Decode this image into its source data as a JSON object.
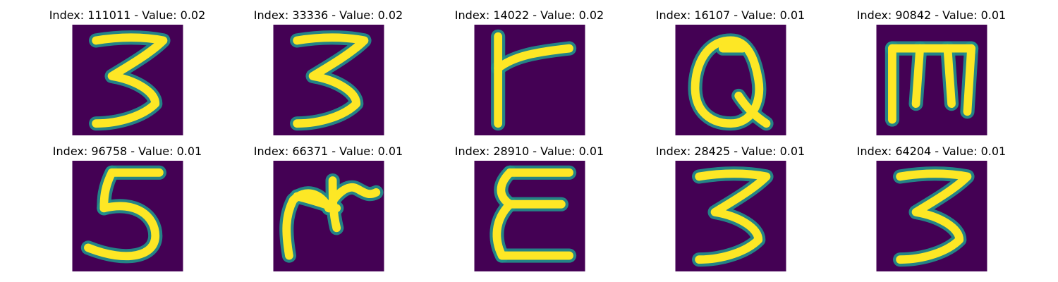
{
  "colors": {
    "background": "#440154",
    "edge": "#21918c",
    "stroke": "#fde725",
    "title": "#000000"
  },
  "panels": [
    {
      "title": "Index: 111011 - Value: 0.02",
      "glyph": "3"
    },
    {
      "title": "Index: 33336 - Value: 0.02",
      "glyph": "3"
    },
    {
      "title": "Index: 14022 - Value: 0.02",
      "glyph": "r"
    },
    {
      "title": "Index: 16107 - Value: 0.01",
      "glyph": "Q"
    },
    {
      "title": "Index: 90842 - Value: 0.01",
      "glyph": "m"
    },
    {
      "title": "Index: 96758 - Value: 0.01",
      "glyph": "5"
    },
    {
      "title": "Index: 66371 - Value: 0.01",
      "glyph": "scribble"
    },
    {
      "title": "Index: 28910 - Value: 0.01",
      "glyph": "E"
    },
    {
      "title": "Index: 28425 - Value: 0.01",
      "glyph": "3"
    },
    {
      "title": "Index: 64204 - Value: 0.01",
      "glyph": "3"
    }
  ]
}
